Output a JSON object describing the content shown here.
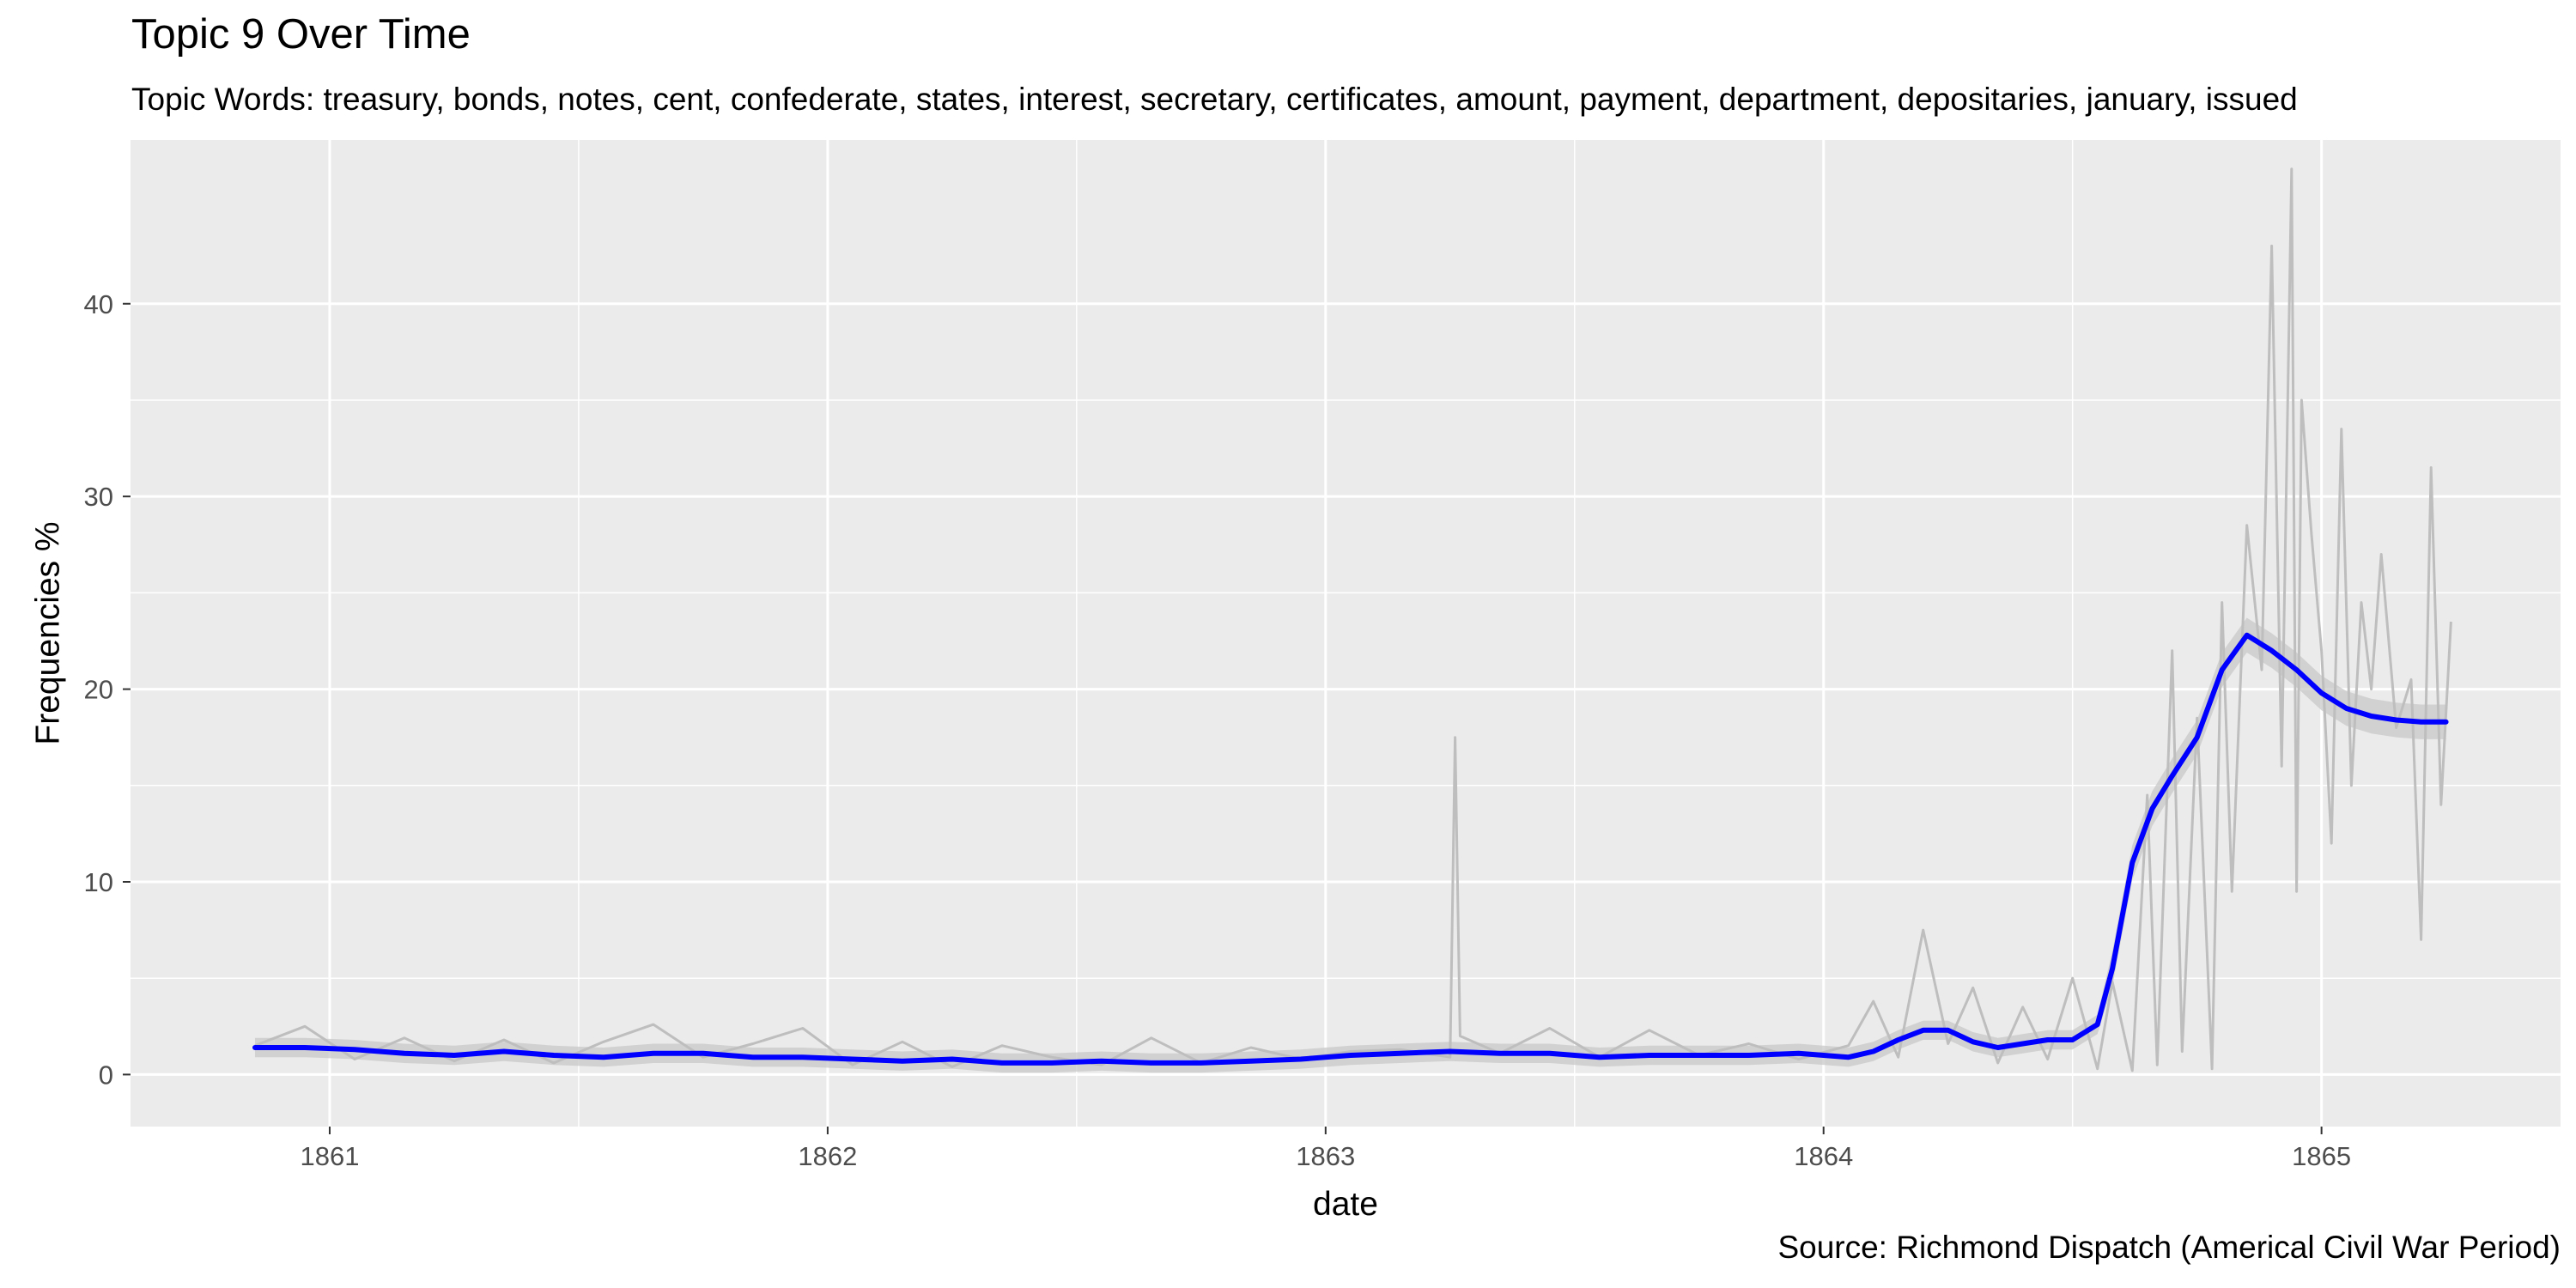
{
  "chart_data": {
    "type": "line",
    "title": "Topic 9 Over Time",
    "subtitle": "Topic Words: treasury, bonds, notes, cent, confederate, states, interest, secretary, certificates, amount, payment, department, depositaries, january, issued",
    "caption": "Source: Richmond Dispatch (Americal Civil War Period)",
    "xlabel": "date",
    "ylabel": "Frequencies %",
    "x_ticks": [
      1861,
      1862,
      1863,
      1864,
      1865
    ],
    "x_tick_labels": [
      "1861",
      "1862",
      "1863",
      "1864",
      "1865"
    ],
    "y_ticks": [
      0,
      10,
      20,
      30,
      40
    ],
    "y_tick_labels": [
      "0",
      "10",
      "20",
      "30",
      "40"
    ],
    "xlim": [
      1860.6,
      1865.48
    ],
    "ylim": [
      -2.7,
      48.5
    ],
    "grid": true,
    "legend": "none",
    "colors": {
      "panel": "#ebebeb",
      "grid": "#ffffff",
      "raw": "#bebebe",
      "band": "#c8c8c8",
      "smooth": "#0000ff"
    },
    "series": [
      {
        "kind": "raw",
        "x": [
          1860.85,
          1860.95,
          1861.05,
          1861.15,
          1861.25,
          1861.35,
          1861.45,
          1861.55,
          1861.65,
          1861.75,
          1861.85,
          1861.95,
          1862.05,
          1862.15,
          1862.25,
          1862.35,
          1862.45,
          1862.55,
          1862.65,
          1862.75,
          1862.85,
          1862.95,
          1863.05,
          1863.15,
          1863.25,
          1863.26,
          1863.27,
          1863.35,
          1863.45,
          1863.55,
          1863.65,
          1863.75,
          1863.85,
          1863.95,
          1864.05,
          1864.1,
          1864.15,
          1864.2,
          1864.25,
          1864.3,
          1864.35,
          1864.4,
          1864.45,
          1864.5,
          1864.55,
          1864.58,
          1864.62,
          1864.65,
          1864.67,
          1864.7,
          1864.72,
          1864.75,
          1864.78,
          1864.8,
          1864.82,
          1864.85,
          1864.88,
          1864.9,
          1864.92,
          1864.94,
          1864.95,
          1864.96,
          1864.98,
          1865.0,
          1865.02,
          1865.04,
          1865.06,
          1865.08,
          1865.1,
          1865.12,
          1865.15,
          1865.18,
          1865.2,
          1865.22,
          1865.24,
          1865.26
        ],
        "y": [
          1.5,
          2.5,
          0.8,
          1.9,
          0.7,
          1.8,
          0.6,
          1.7,
          2.6,
          0.9,
          1.6,
          2.4,
          0.5,
          1.7,
          0.4,
          1.5,
          0.9,
          0.5,
          1.9,
          0.6,
          1.4,
          0.8,
          1.2,
          1.3,
          0.9,
          17.5,
          2.0,
          1.1,
          2.4,
          0.9,
          2.3,
          1.0,
          1.6,
          0.8,
          1.5,
          3.8,
          0.9,
          7.5,
          1.6,
          4.5,
          0.6,
          3.5,
          0.8,
          5.0,
          0.3,
          4.8,
          0.2,
          14.5,
          0.5,
          22.0,
          1.2,
          18.5,
          0.3,
          24.5,
          9.5,
          28.5,
          21.0,
          43.0,
          16.0,
          47.0,
          9.5,
          35.0,
          28.0,
          22.0,
          12.0,
          33.5,
          15.0,
          24.5,
          20.0,
          27.0,
          18.0,
          20.5,
          7.0,
          31.5,
          14.0,
          23.5
        ]
      },
      {
        "kind": "smooth",
        "x": [
          1860.85,
          1860.95,
          1861.05,
          1861.15,
          1861.25,
          1861.35,
          1861.45,
          1861.55,
          1861.65,
          1861.75,
          1861.85,
          1861.95,
          1862.05,
          1862.15,
          1862.25,
          1862.35,
          1862.45,
          1862.55,
          1862.65,
          1862.75,
          1862.85,
          1862.95,
          1863.05,
          1863.15,
          1863.25,
          1863.35,
          1863.45,
          1863.55,
          1863.65,
          1863.75,
          1863.85,
          1863.95,
          1864.05,
          1864.1,
          1864.15,
          1864.2,
          1864.25,
          1864.3,
          1864.35,
          1864.4,
          1864.45,
          1864.5,
          1864.55,
          1864.58,
          1864.62,
          1864.66,
          1864.7,
          1864.75,
          1864.8,
          1864.85,
          1864.9,
          1864.95,
          1865.0,
          1865.05,
          1865.1,
          1865.15,
          1865.2,
          1865.25
        ],
        "y": [
          1.4,
          1.4,
          1.3,
          1.1,
          1.0,
          1.2,
          1.0,
          0.9,
          1.1,
          1.1,
          0.9,
          0.9,
          0.8,
          0.7,
          0.8,
          0.6,
          0.6,
          0.7,
          0.6,
          0.6,
          0.7,
          0.8,
          1.0,
          1.1,
          1.2,
          1.1,
          1.1,
          0.9,
          1.0,
          1.0,
          1.0,
          1.1,
          0.9,
          1.2,
          1.8,
          2.3,
          2.3,
          1.7,
          1.4,
          1.6,
          1.8,
          1.8,
          2.6,
          5.5,
          11.0,
          13.8,
          15.5,
          17.5,
          21.0,
          22.8,
          22.0,
          21.0,
          19.8,
          19.0,
          18.6,
          18.4,
          18.3,
          18.3
        ]
      }
    ]
  }
}
